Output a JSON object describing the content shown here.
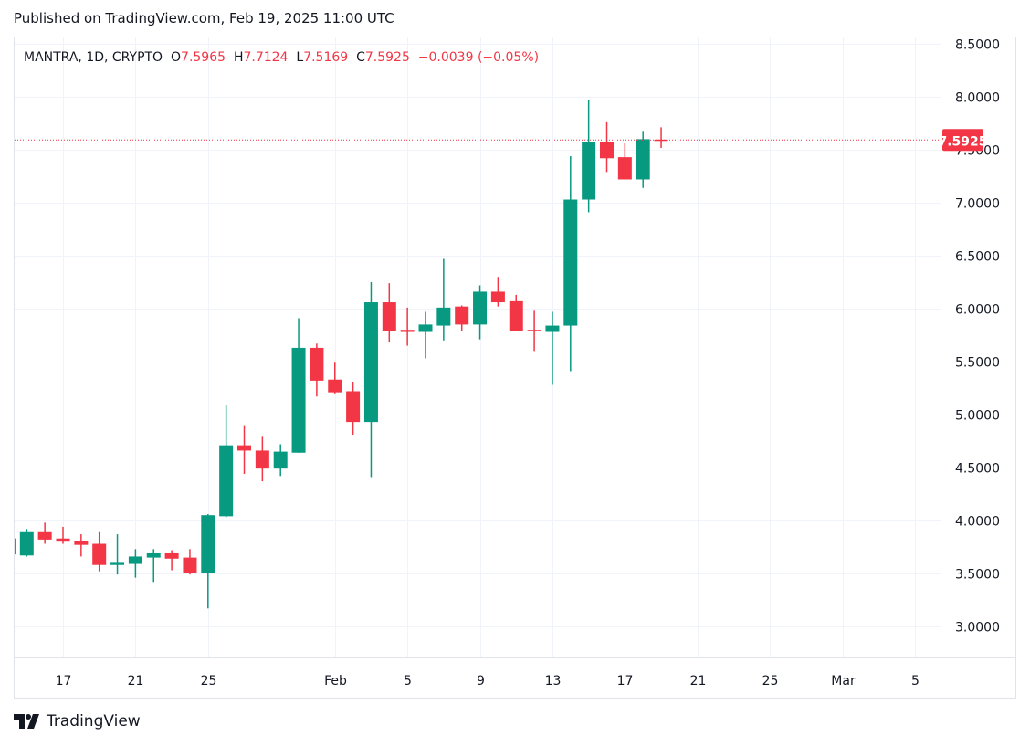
{
  "header": {
    "published": "Published on TradingView.com, Feb 19, 2025 11:00 UTC"
  },
  "legend": {
    "symbol": "MANTRA, 1D, CRYPTO",
    "o_label": "O",
    "o": "7.5965",
    "h_label": "H",
    "h": "7.7124",
    "l_label": "L",
    "l": "7.5169",
    "c_label": "C",
    "c": "7.5925",
    "change": "−0.0039 (−0.05%)"
  },
  "footer": {
    "brand": "TradingView",
    "logo_icon": "tradingview-logo-icon"
  },
  "colors": {
    "up": "#089981",
    "down": "#f23645",
    "grid": "#f0f3fa",
    "text": "#131722"
  },
  "chart_data": {
    "type": "candlestick",
    "title": "MANTRA, 1D, CRYPTO",
    "ylim": [
      2.71,
      8.57
    ],
    "y_ticks": [
      "3.0000",
      "3.5000",
      "4.0000",
      "4.5000",
      "5.0000",
      "5.5000",
      "6.0000",
      "6.5000",
      "7.0000",
      "7.5000",
      "8.0000",
      "8.5000"
    ],
    "last_price": "7.5925",
    "x_ticks": [
      {
        "date": "2025-01-17",
        "label": "17"
      },
      {
        "date": "2025-01-21",
        "label": "21"
      },
      {
        "date": "2025-01-25",
        "label": "25"
      },
      {
        "date": "2025-02-01",
        "label": "Feb"
      },
      {
        "date": "2025-02-05",
        "label": "5"
      },
      {
        "date": "2025-02-09",
        "label": "9"
      },
      {
        "date": "2025-02-13",
        "label": "13"
      },
      {
        "date": "2025-02-17",
        "label": "17"
      },
      {
        "date": "2025-02-21",
        "label": "21"
      },
      {
        "date": "2025-02-25",
        "label": "25"
      },
      {
        "date": "2025-03-01",
        "label": "Mar"
      },
      {
        "date": "2025-03-05",
        "label": "5"
      }
    ],
    "candles": [
      {
        "date": "2025-01-14",
        "o": 3.83,
        "h": 3.85,
        "l": 3.66,
        "c": 3.68
      },
      {
        "date": "2025-01-15",
        "o": 3.67,
        "h": 3.92,
        "l": 3.66,
        "c": 3.89
      },
      {
        "date": "2025-01-16",
        "o": 3.89,
        "h": 3.98,
        "l": 3.78,
        "c": 3.82
      },
      {
        "date": "2025-01-17",
        "o": 3.83,
        "h": 3.94,
        "l": 3.78,
        "c": 3.8
      },
      {
        "date": "2025-01-18",
        "o": 3.81,
        "h": 3.87,
        "l": 3.66,
        "c": 3.77
      },
      {
        "date": "2025-01-19",
        "o": 3.78,
        "h": 3.89,
        "l": 3.52,
        "c": 3.58
      },
      {
        "date": "2025-01-20",
        "o": 3.58,
        "h": 3.87,
        "l": 3.49,
        "c": 3.6
      },
      {
        "date": "2025-01-21",
        "o": 3.59,
        "h": 3.73,
        "l": 3.46,
        "c": 3.66
      },
      {
        "date": "2025-01-22",
        "o": 3.65,
        "h": 3.73,
        "l": 3.42,
        "c": 3.69
      },
      {
        "date": "2025-01-23",
        "o": 3.69,
        "h": 3.72,
        "l": 3.53,
        "c": 3.64
      },
      {
        "date": "2025-01-24",
        "o": 3.65,
        "h": 3.73,
        "l": 3.49,
        "c": 3.5
      },
      {
        "date": "2025-01-25",
        "o": 3.5,
        "h": 4.06,
        "l": 3.17,
        "c": 4.05
      },
      {
        "date": "2025-01-26",
        "o": 4.04,
        "h": 5.09,
        "l": 4.03,
        "c": 4.71
      },
      {
        "date": "2025-01-27",
        "o": 4.71,
        "h": 4.9,
        "l": 4.44,
        "c": 4.66
      },
      {
        "date": "2025-01-28",
        "o": 4.66,
        "h": 4.79,
        "l": 4.37,
        "c": 4.49
      },
      {
        "date": "2025-01-29",
        "o": 4.49,
        "h": 4.72,
        "l": 4.42,
        "c": 4.65
      },
      {
        "date": "2025-01-30",
        "o": 4.64,
        "h": 5.91,
        "l": 4.64,
        "c": 5.63
      },
      {
        "date": "2025-01-31",
        "o": 5.63,
        "h": 5.67,
        "l": 5.17,
        "c": 5.32
      },
      {
        "date": "2025-02-01",
        "o": 5.33,
        "h": 5.49,
        "l": 5.2,
        "c": 5.21
      },
      {
        "date": "2025-02-02",
        "o": 5.22,
        "h": 5.31,
        "l": 4.81,
        "c": 4.93
      },
      {
        "date": "2025-02-03",
        "o": 4.93,
        "h": 6.25,
        "l": 4.41,
        "c": 6.06
      },
      {
        "date": "2025-02-04",
        "o": 6.06,
        "h": 6.24,
        "l": 5.68,
        "c": 5.79
      },
      {
        "date": "2025-02-05",
        "o": 5.8,
        "h": 6.01,
        "l": 5.65,
        "c": 5.78
      },
      {
        "date": "2025-02-06",
        "o": 5.78,
        "h": 5.97,
        "l": 5.53,
        "c": 5.85
      },
      {
        "date": "2025-02-07",
        "o": 5.84,
        "h": 6.47,
        "l": 5.7,
        "c": 6.01
      },
      {
        "date": "2025-02-08",
        "o": 6.02,
        "h": 6.03,
        "l": 5.79,
        "c": 5.85
      },
      {
        "date": "2025-02-09",
        "o": 5.85,
        "h": 6.22,
        "l": 5.71,
        "c": 6.16
      },
      {
        "date": "2025-02-10",
        "o": 6.16,
        "h": 6.3,
        "l": 6.02,
        "c": 6.06
      },
      {
        "date": "2025-02-11",
        "o": 6.07,
        "h": 6.13,
        "l": 5.79,
        "c": 5.79
      },
      {
        "date": "2025-02-12",
        "o": 5.8,
        "h": 5.98,
        "l": 5.6,
        "c": 5.79
      },
      {
        "date": "2025-02-13",
        "o": 5.78,
        "h": 5.97,
        "l": 5.28,
        "c": 5.84
      },
      {
        "date": "2025-02-14",
        "o": 5.84,
        "h": 7.44,
        "l": 5.41,
        "c": 7.03
      },
      {
        "date": "2025-02-15",
        "o": 7.03,
        "h": 7.97,
        "l": 6.91,
        "c": 7.57
      },
      {
        "date": "2025-02-16",
        "o": 7.57,
        "h": 7.76,
        "l": 7.29,
        "c": 7.42
      },
      {
        "date": "2025-02-17",
        "o": 7.43,
        "h": 7.56,
        "l": 7.22,
        "c": 7.22
      },
      {
        "date": "2025-02-18",
        "o": 7.22,
        "h": 7.67,
        "l": 7.14,
        "c": 7.6
      },
      {
        "date": "2025-02-19",
        "o": 7.5965,
        "h": 7.7124,
        "l": 7.5169,
        "c": 7.5925
      }
    ]
  }
}
